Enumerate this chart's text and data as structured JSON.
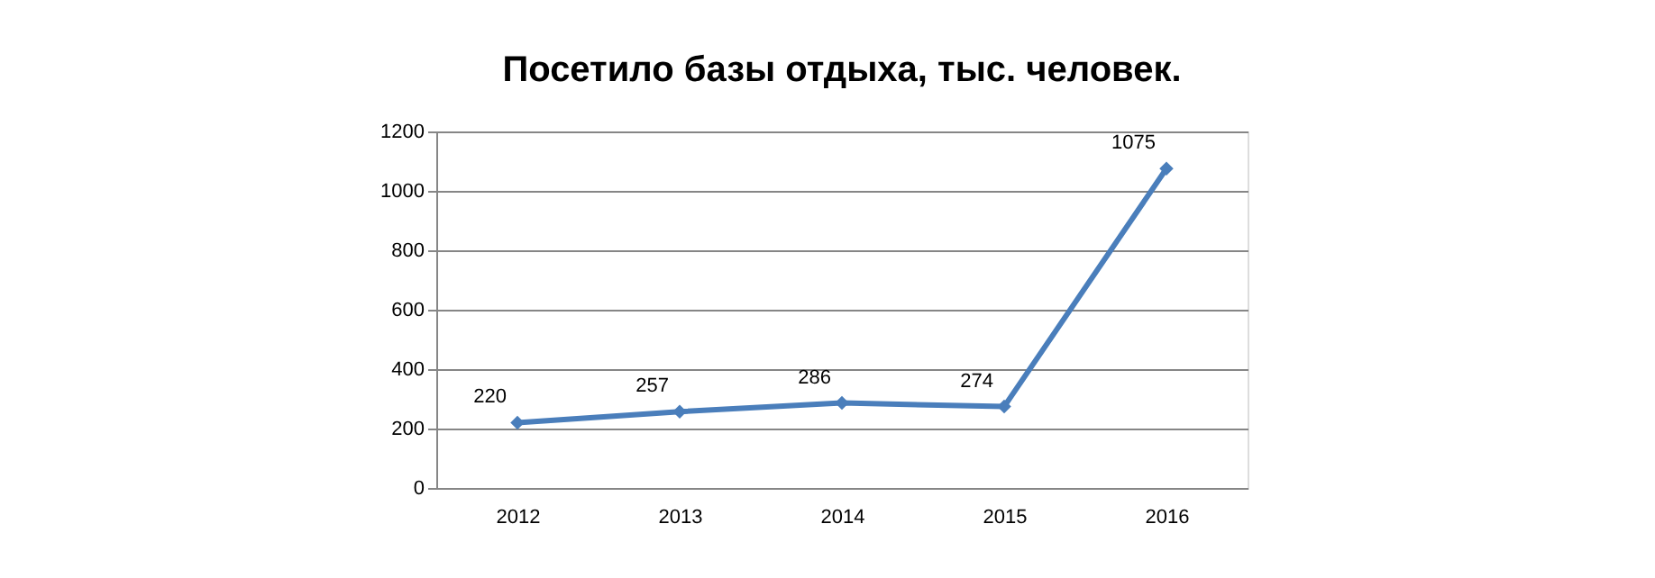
{
  "chart_data": {
    "type": "line",
    "title": "Посетило базы отдыха, тыс. человек.",
    "categories": [
      "2012",
      "2013",
      "2014",
      "2015",
      "2016"
    ],
    "series": [
      {
        "color": "#4a7ebb",
        "values": [
          220,
          257,
          286,
          274,
          1075
        ]
      }
    ],
    "ylim": [
      0,
      1200
    ],
    "yticks": [
      0,
      200,
      400,
      600,
      800,
      1000,
      1200
    ],
    "grid": "y",
    "marker": "diamond",
    "line_style": "solid",
    "data_labels": true
  }
}
